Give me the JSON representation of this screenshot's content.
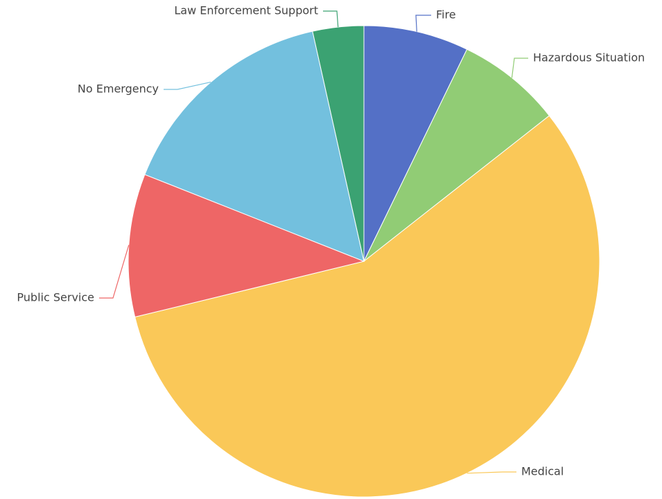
{
  "chart_data": {
    "type": "pie",
    "categories": [
      "Fire",
      "Hazardous Situation",
      "Medical",
      "Public Service",
      "No Emergency",
      "Law Enforcement Support"
    ],
    "values": [
      7.2,
      7.2,
      56.8,
      9.8,
      15.5,
      3.5
    ],
    "colors": [
      "#5470c6",
      "#91cc75",
      "#fac858",
      "#ee6666",
      "#73c0de",
      "#3ba272"
    ],
    "start_angle": "12 o'clock",
    "direction": "clockwise",
    "legend": "none",
    "title": ""
  }
}
